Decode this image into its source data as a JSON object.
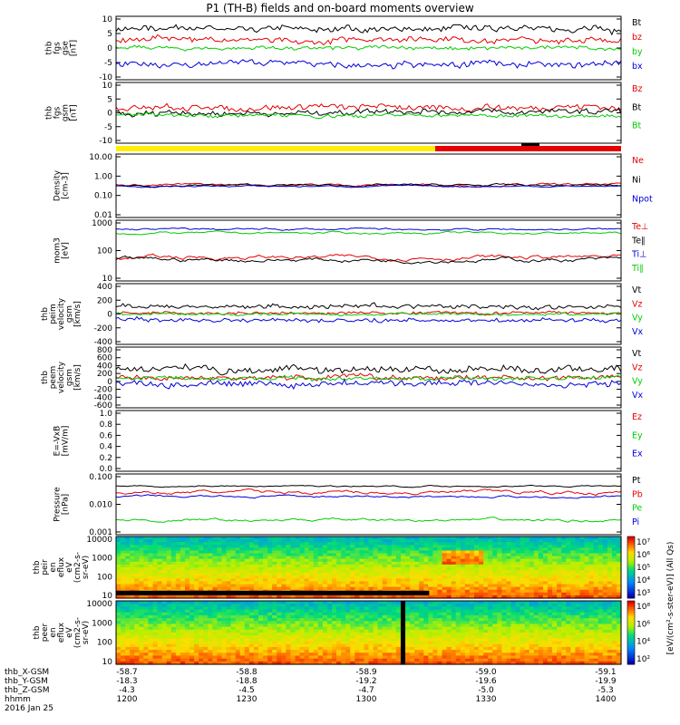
{
  "title": "P1  (TH-B) fields and on-board moments overview",
  "colors": {
    "black": "#000000",
    "red": "#e60000",
    "green": "#00cc00",
    "blue": "#0000dd",
    "yellow": "#ffee00"
  },
  "chart_data": [
    {
      "id": "fgs-gse",
      "type": "line",
      "ylabel_lines": [
        "thb",
        "fgs",
        "gse",
        "[nT]"
      ],
      "ylim": [
        -10,
        10
      ],
      "yticks": [
        "10",
        "5",
        "0",
        "-5",
        "-10"
      ],
      "series": [
        {
          "name": "Bt",
          "color": "black",
          "level": 6,
          "amp": 2.5
        },
        {
          "name": "bz",
          "color": "red",
          "level": 2.5,
          "amp": 2.5
        },
        {
          "name": "by",
          "color": "green",
          "level": 0,
          "amp": 1.5
        },
        {
          "name": "bx",
          "color": "blue",
          "level": -5,
          "amp": 2.5
        }
      ]
    },
    {
      "id": "fgs-gsm",
      "type": "line",
      "ylabel_lines": [
        "thb",
        "fgs",
        "gsm",
        "[nT]"
      ],
      "ylim": [
        -12,
        12
      ],
      "yticks": [
        "10",
        "5",
        "0",
        "-5",
        "-10"
      ],
      "series": [
        {
          "name": "Bz",
          "color": "red",
          "level": 2,
          "amp": 3
        },
        {
          "name": "Bt",
          "color": "black",
          "level": 0,
          "amp": 3
        },
        {
          "name": "Bt",
          "color": "green",
          "level": -1,
          "amp": 2
        }
      ]
    },
    {
      "id": "density",
      "type": "line",
      "log": true,
      "ylabel_lines": [
        "Density",
        "[cm-3]"
      ],
      "ylim": [
        0.01,
        10
      ],
      "yticks": [
        "10.00",
        "1.00",
        "0.10",
        "0.01"
      ],
      "series": [
        {
          "name": "Ne",
          "color": "red",
          "level": 0.35,
          "amp": 0.25
        },
        {
          "name": "Ni",
          "color": "black",
          "level": 0.33,
          "amp": 0.25
        },
        {
          "name": "Npot",
          "color": "blue",
          "level": 0.3,
          "amp": 0.15
        }
      ]
    },
    {
      "id": "temperature",
      "type": "line",
      "log": true,
      "ylabel_lines": [
        "mom3",
        "[eV]"
      ],
      "ylim": [
        10,
        1000
      ],
      "yticks": [
        "1000",
        "100",
        "10"
      ],
      "series": [
        {
          "name": "Te⊥",
          "color": "red",
          "level": 60,
          "amp": 0.3
        },
        {
          "name": "Te∥",
          "color": "black",
          "level": 50,
          "amp": 0.3
        },
        {
          "name": "Ti⊥",
          "color": "blue",
          "level": 500,
          "amp": 0.15
        },
        {
          "name": "Ti∥",
          "color": "green",
          "level": 380,
          "amp": 0.15
        }
      ]
    },
    {
      "id": "peim-velocity",
      "type": "line",
      "ylabel_lines": [
        "thb",
        "peim",
        "velocity",
        "gsm",
        "[km/s]"
      ],
      "ylim": [
        -400,
        400
      ],
      "yticks": [
        "400",
        "200",
        "0",
        "-200",
        "-400"
      ],
      "series": [
        {
          "name": "Vt",
          "color": "black",
          "level": 100,
          "amp": 80
        },
        {
          "name": "Vz",
          "color": "red",
          "level": 10,
          "amp": 50
        },
        {
          "name": "Vy",
          "color": "green",
          "level": 0,
          "amp": 40
        },
        {
          "name": "Vx",
          "color": "blue",
          "level": -80,
          "amp": 70
        }
      ]
    },
    {
      "id": "peem-velocity",
      "type": "line",
      "ylabel_lines": [
        "thb",
        "peem",
        "velocity",
        "gsm",
        "[km/s]"
      ],
      "ylim": [
        -600,
        600
      ],
      "yticks": [
        "800",
        "600",
        "400",
        "200",
        "0",
        "-200",
        "-400",
        "-600"
      ],
      "series": [
        {
          "name": "Vt",
          "color": "black",
          "level": 150,
          "amp": 180
        },
        {
          "name": "Vz",
          "color": "red",
          "level": 0,
          "amp": 120
        },
        {
          "name": "Vy",
          "color": "green",
          "level": -20,
          "amp": 100
        },
        {
          "name": "Vx",
          "color": "blue",
          "level": -120,
          "amp": 160
        }
      ]
    },
    {
      "id": "efield",
      "type": "line",
      "ylabel_lines": [
        "E=-VxB",
        "[mV/m]"
      ],
      "ylim": [
        0,
        1
      ],
      "yticks": [
        "1.0",
        "0.8",
        "0.6",
        "0.4",
        "0.2",
        "0.0"
      ],
      "series": [
        {
          "name": "Ez",
          "color": "red",
          "empty": true
        },
        {
          "name": "Ey",
          "color": "green",
          "empty": true
        },
        {
          "name": "Ex",
          "color": "blue",
          "empty": true
        }
      ]
    },
    {
      "id": "pressure",
      "type": "line",
      "log": true,
      "ylabel_lines": [
        "Pressure",
        "[nPa]"
      ],
      "ylim": [
        0.001,
        0.1
      ],
      "yticks": [
        "0.100",
        "0.010",
        "0.001"
      ],
      "series": [
        {
          "name": "Pt",
          "color": "black",
          "level": 0.04,
          "amp": 0.1
        },
        {
          "name": "Pb",
          "color": "red",
          "level": 0.025,
          "amp": 0.25
        },
        {
          "name": "Pe",
          "color": "green",
          "level": 0.003,
          "amp": 0.2
        },
        {
          "name": "Pi",
          "color": "blue",
          "level": 0.018,
          "amp": 0.15
        }
      ]
    },
    {
      "id": "peir-spectrogram",
      "type": "heatmap",
      "ylabel_lines": [
        "thb",
        "peir",
        "en",
        "eflux",
        "eV",
        "(cm2-s-",
        "sr-eV)"
      ],
      "yticks": [
        "10000",
        "1000",
        "100",
        "10"
      ],
      "colorbar_ticks": [
        "10⁷",
        "10⁶",
        "10⁵",
        "10⁴",
        "10³"
      ]
    },
    {
      "id": "peer-spectrogram",
      "type": "heatmap",
      "ylabel_lines": [
        "thb",
        "peer",
        "en",
        "eflux",
        "eV",
        "(cm2-s-",
        "sr-eV)"
      ],
      "yticks": [
        "10000",
        "1000",
        "100",
        "10"
      ],
      "colorbar_ticks": [
        "10⁸",
        "10⁶",
        "10⁴",
        "10²"
      ]
    }
  ],
  "colorbar_label": "[eV/(cm²-s-ster-eV)] (All Qs)",
  "footer": {
    "rows": [
      {
        "label": "thb_X-GSM",
        "values": [
          "-58.7",
          "-58.8",
          "-58.9",
          "-59.0",
          "-59.1"
        ]
      },
      {
        "label": "thb_Y-GSM",
        "values": [
          "-18.3",
          "-18.8",
          "-19.2",
          "-19.6",
          "-19.9"
        ]
      },
      {
        "label": "thb_Z-GSM",
        "values": [
          "-4.3",
          "-4.5",
          "-4.7",
          "-5.0",
          "-5.3"
        ]
      },
      {
        "label": "hhmm",
        "values": [
          "1200",
          "1230",
          "1300",
          "1330",
          "1400"
        ]
      }
    ],
    "date": "2016 Jan 25"
  }
}
